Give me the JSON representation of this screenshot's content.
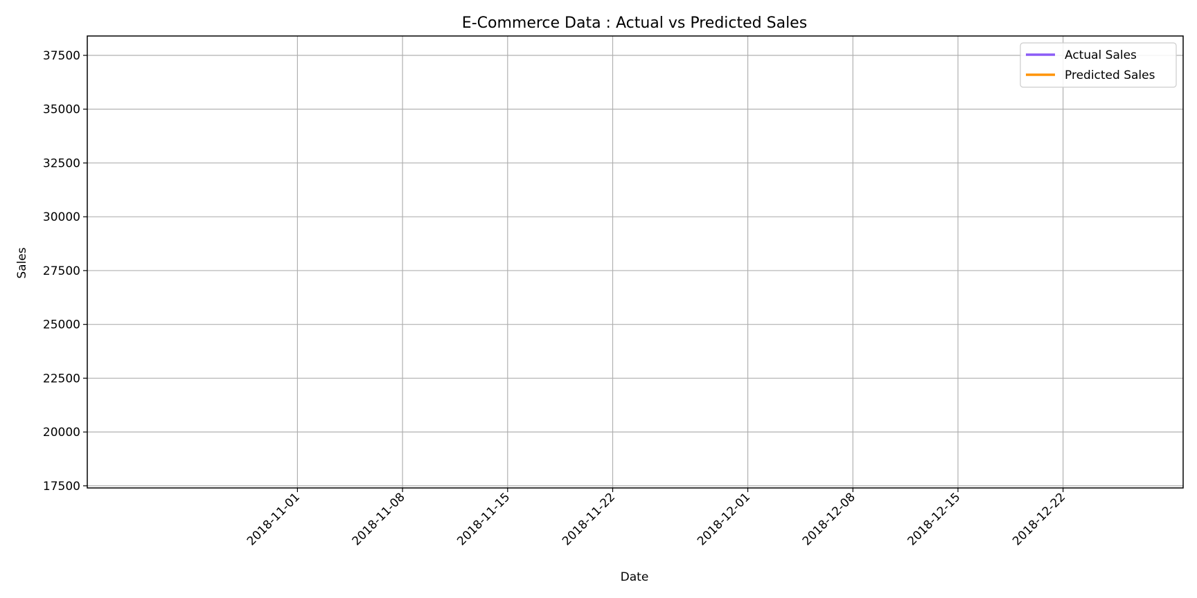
{
  "chart_data": {
    "type": "line",
    "title": "E-Commerce Data : Actual vs Predicted Sales",
    "xlabel": "Date",
    "ylabel": "Sales",
    "x_type": "date",
    "xlim": [
      "2018-10-18",
      "2018-12-30"
    ],
    "ylim": [
      17400,
      38400
    ],
    "x_ticks": [
      "2018-11-01",
      "2018-11-08",
      "2018-11-15",
      "2018-11-22",
      "2018-12-01",
      "2018-12-08",
      "2018-12-15",
      "2018-12-22"
    ],
    "y_ticks": [
      17500,
      20000,
      22500,
      25000,
      27500,
      30000,
      32500,
      35000,
      37500
    ],
    "grid": true,
    "legend_position": "top-right",
    "series": [
      {
        "name": "Actual Sales",
        "color": "#8b5cf6",
        "x": [],
        "y": []
      },
      {
        "name": "Predicted Sales",
        "color": "#ff9408",
        "x": [],
        "y": []
      }
    ]
  }
}
